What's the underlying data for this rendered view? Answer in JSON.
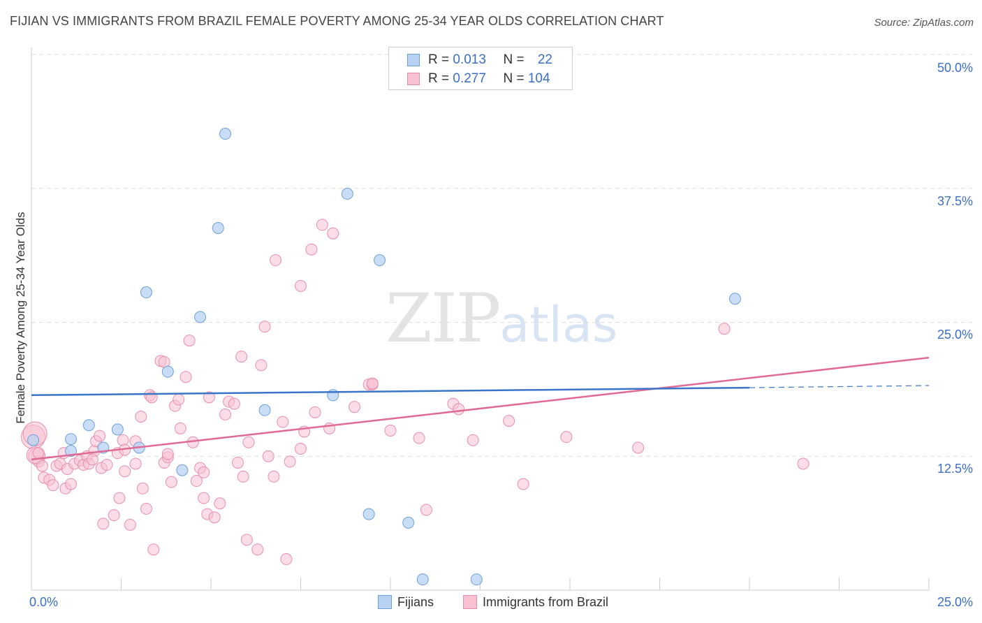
{
  "header": {
    "title": "FIJIAN VS IMMIGRANTS FROM BRAZIL FEMALE POVERTY AMONG 25-34 YEAR OLDS CORRELATION CHART",
    "source": "Source: ZipAtlas.com"
  },
  "watermark": {
    "zip": "ZIP",
    "atlas": "atlas"
  },
  "legend": {
    "rows": [
      {
        "r_label": "R = ",
        "r_value": "0.013",
        "n_label": "N = ",
        "n_value": "22"
      },
      {
        "r_label": "R = ",
        "r_value": "0.277",
        "n_label": "N = ",
        "n_value": "104"
      }
    ]
  },
  "bottom_legend": {
    "series1": "Fijians",
    "series2": "Immigrants from Brazil"
  },
  "axes": {
    "ylabel": "Female Poverty Among 25-34 Year Olds",
    "x_min_label": "0.0%",
    "x_max_label": "25.0%",
    "y_ticks": [
      "50.0%",
      "37.5%",
      "25.0%",
      "12.5%"
    ]
  },
  "colors": {
    "fijians_fill": "#b8d2f3",
    "fijians_stroke": "#6e9fd8",
    "fijians_line": "#3a74c8",
    "brazil_fill": "#f7c1d2",
    "brazil_stroke": "#e68fae",
    "brazil_line": "#e06a96",
    "tick_text": "#3b6fc4"
  },
  "chart_data": {
    "type": "scatter",
    "xlim": [
      0,
      25
    ],
    "ylim": [
      0,
      50
    ],
    "y_gridlines": [
      12.5,
      25,
      37.5,
      50
    ],
    "grid": true,
    "legend_position": "top-center",
    "series": [
      {
        "name": "Fijians",
        "r": 0.013,
        "n": 22,
        "trend": {
          "x0": 0,
          "y0": 18.2,
          "x1": 20,
          "y1": 18.9,
          "dashed_to_x": 25,
          "dashed_to_y": 19.1
        },
        "points": [
          [
            0.05,
            14.0
          ],
          [
            1.1,
            13.0
          ],
          [
            1.1,
            14.1
          ],
          [
            1.6,
            15.4
          ],
          [
            2.0,
            13.3
          ],
          [
            2.4,
            15.0
          ],
          [
            3.0,
            13.3
          ],
          [
            3.2,
            27.8
          ],
          [
            3.8,
            20.4
          ],
          [
            4.2,
            11.2
          ],
          [
            4.7,
            25.5
          ],
          [
            5.2,
            33.8
          ],
          [
            5.4,
            42.6
          ],
          [
            6.5,
            16.8
          ],
          [
            8.4,
            18.2
          ],
          [
            8.8,
            37.0
          ],
          [
            9.4,
            7.1
          ],
          [
            9.7,
            30.8
          ],
          [
            10.5,
            6.3
          ],
          [
            10.9,
            1.0
          ],
          [
            12.4,
            1.0
          ],
          [
            19.6,
            27.2
          ]
        ]
      },
      {
        "name": "Immigrants from Brazil",
        "r": 0.277,
        "n": 104,
        "trend": {
          "x0": 0,
          "y0": 12.2,
          "x1": 25,
          "y1": 21.7
        },
        "points": [
          [
            0.05,
            14.3
          ],
          [
            0.15,
            12.5
          ],
          [
            0.2,
            12.0
          ],
          [
            0.3,
            11.6
          ],
          [
            0.35,
            10.5
          ],
          [
            0.5,
            10.3
          ],
          [
            0.6,
            9.8
          ],
          [
            0.7,
            11.6
          ],
          [
            0.8,
            11.8
          ],
          [
            0.9,
            12.8
          ],
          [
            0.95,
            9.5
          ],
          [
            1.0,
            11.3
          ],
          [
            1.1,
            9.9
          ],
          [
            1.2,
            11.8
          ],
          [
            1.35,
            12.1
          ],
          [
            1.45,
            11.7
          ],
          [
            1.55,
            12.5
          ],
          [
            1.6,
            11.8
          ],
          [
            1.75,
            13.0
          ],
          [
            1.8,
            13.9
          ],
          [
            1.9,
            14.4
          ],
          [
            1.95,
            11.4
          ],
          [
            2.0,
            6.2
          ],
          [
            2.1,
            11.7
          ],
          [
            2.3,
            7.0
          ],
          [
            2.4,
            12.8
          ],
          [
            2.45,
            8.6
          ],
          [
            2.55,
            14.0
          ],
          [
            2.6,
            13.1
          ],
          [
            2.6,
            11.1
          ],
          [
            2.75,
            6.1
          ],
          [
            2.9,
            11.8
          ],
          [
            2.9,
            13.9
          ],
          [
            3.05,
            16.2
          ],
          [
            3.1,
            9.5
          ],
          [
            3.2,
            7.6
          ],
          [
            3.3,
            18.2
          ],
          [
            3.35,
            18.0
          ],
          [
            3.4,
            3.8
          ],
          [
            3.6,
            21.4
          ],
          [
            3.7,
            21.3
          ],
          [
            3.7,
            11.9
          ],
          [
            3.8,
            12.4
          ],
          [
            3.8,
            12.7
          ],
          [
            3.9,
            10.1
          ],
          [
            4.0,
            17.2
          ],
          [
            4.1,
            17.8
          ],
          [
            4.15,
            15.1
          ],
          [
            4.3,
            19.9
          ],
          [
            4.4,
            23.3
          ],
          [
            4.5,
            13.8
          ],
          [
            4.6,
            10.2
          ],
          [
            4.7,
            11.4
          ],
          [
            4.8,
            11.0
          ],
          [
            4.8,
            8.6
          ],
          [
            4.9,
            7.1
          ],
          [
            4.95,
            18.0
          ],
          [
            5.1,
            6.8
          ],
          [
            5.25,
            8.1
          ],
          [
            5.4,
            16.4
          ],
          [
            5.5,
            17.6
          ],
          [
            5.65,
            17.4
          ],
          [
            5.75,
            11.9
          ],
          [
            5.85,
            21.8
          ],
          [
            5.9,
            10.6
          ],
          [
            6.0,
            4.7
          ],
          [
            6.05,
            13.8
          ],
          [
            6.3,
            3.8
          ],
          [
            6.4,
            21.0
          ],
          [
            6.5,
            24.6
          ],
          [
            6.6,
            12.5
          ],
          [
            6.75,
            10.6
          ],
          [
            6.8,
            30.8
          ],
          [
            7.0,
            15.7
          ],
          [
            7.1,
            2.9
          ],
          [
            7.2,
            12.0
          ],
          [
            7.5,
            28.4
          ],
          [
            7.5,
            13.2
          ],
          [
            7.6,
            14.8
          ],
          [
            7.8,
            31.8
          ],
          [
            7.9,
            16.6
          ],
          [
            8.1,
            34.1
          ],
          [
            8.3,
            15.1
          ],
          [
            8.4,
            33.3
          ],
          [
            9.0,
            17.1
          ],
          [
            9.4,
            19.2
          ],
          [
            9.5,
            19.2
          ],
          [
            9.5,
            19.3
          ],
          [
            10.0,
            14.9
          ],
          [
            10.8,
            14.2
          ],
          [
            11.0,
            7.5
          ],
          [
            11.75,
            17.4
          ],
          [
            11.9,
            16.9
          ],
          [
            12.3,
            14.0
          ],
          [
            13.3,
            15.8
          ],
          [
            13.7,
            9.9
          ],
          [
            14.9,
            14.3
          ],
          [
            16.9,
            13.3
          ],
          [
            19.3,
            24.4
          ],
          [
            21.5,
            11.8
          ],
          [
            0.1,
            14.6
          ],
          [
            0.1,
            12.6
          ],
          [
            0.2,
            12.8
          ],
          [
            1.7,
            12.2
          ]
        ]
      }
    ]
  }
}
